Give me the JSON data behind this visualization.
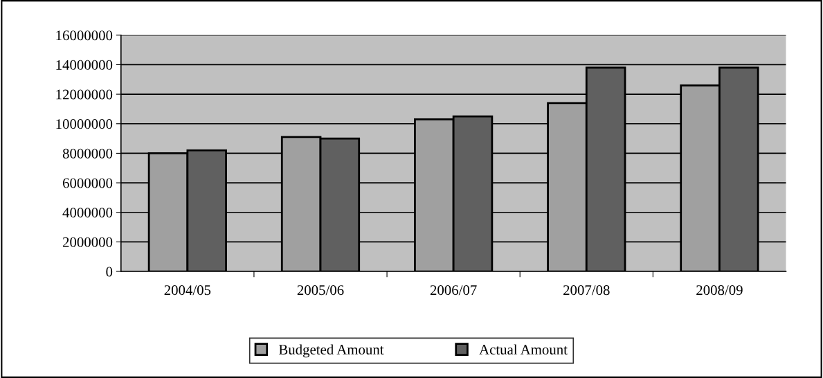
{
  "chart_data": {
    "type": "bar",
    "categories": [
      "2004/05",
      "2005/06",
      "2006/07",
      "2007/08",
      "2008/09"
    ],
    "series": [
      {
        "name": "Budgeted Amount",
        "color": "#a0a0a0",
        "values": [
          8000000,
          9100000,
          10300000,
          11400000,
          12600000
        ]
      },
      {
        "name": "Actual Amount",
        "color": "#606060",
        "values": [
          8200000,
          9000000,
          10500000,
          13800000,
          13800000
        ]
      }
    ],
    "ylim": [
      0,
      16000000
    ],
    "yticks": [
      0,
      2000000,
      4000000,
      6000000,
      8000000,
      10000000,
      12000000,
      14000000,
      16000000
    ],
    "grid": "y",
    "legend": "bottom"
  }
}
